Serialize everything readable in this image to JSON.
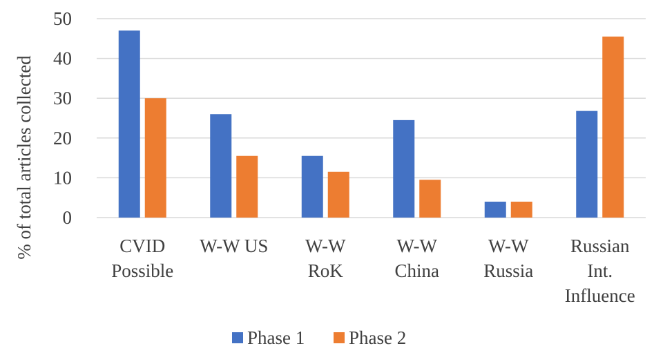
{
  "chart_data": {
    "type": "bar",
    "ylabel": "% of total articles collected",
    "xlabel": "",
    "ylim": [
      0,
      50
    ],
    "yticks": [
      0,
      10,
      20,
      30,
      40,
      50
    ],
    "grid": true,
    "legend_position": "bottom",
    "categories": [
      [
        "CVID",
        "Possible"
      ],
      [
        "W-W US"
      ],
      [
        "W-W",
        "RoK"
      ],
      [
        "W-W",
        "China"
      ],
      [
        "W-W",
        "Russia"
      ],
      [
        "Russian",
        "Int.",
        "Influence"
      ]
    ],
    "series": [
      {
        "name": "Phase 1",
        "color": "#4472c4",
        "values": [
          47,
          26,
          15.5,
          24.5,
          4,
          26.8
        ]
      },
      {
        "name": "Phase 2",
        "color": "#ed7d31",
        "values": [
          30,
          15.5,
          11.5,
          9.5,
          4,
          45.5
        ]
      }
    ]
  }
}
